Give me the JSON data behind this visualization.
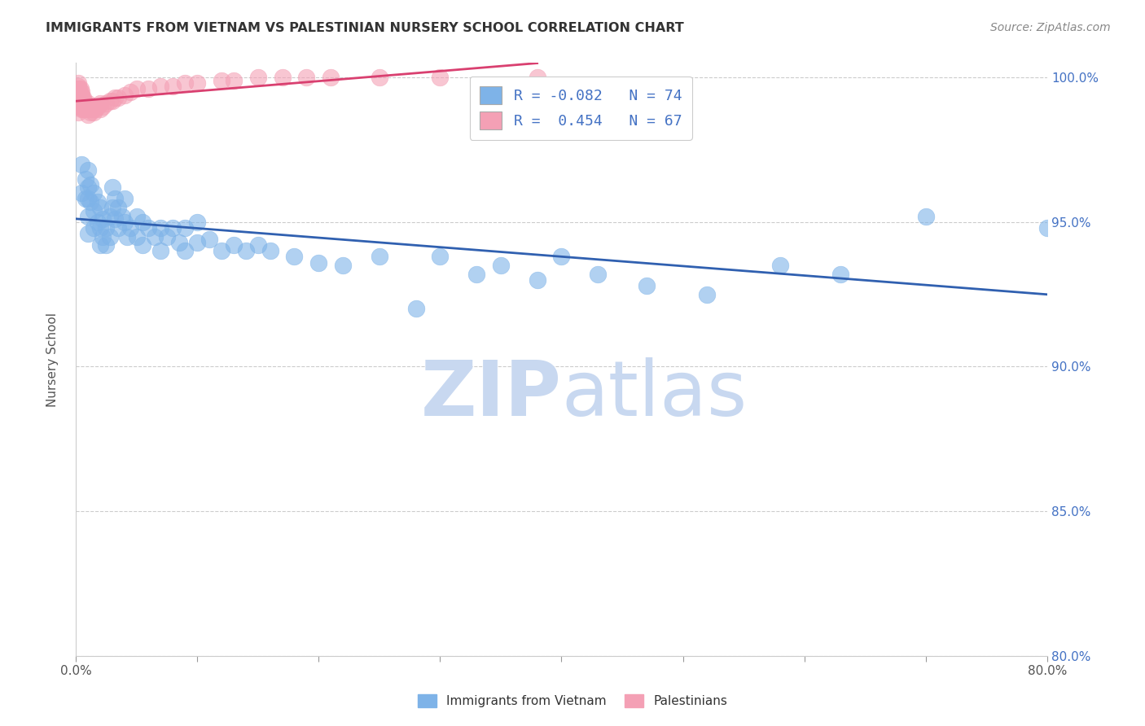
{
  "title": "IMMIGRANTS FROM VIETNAM VS PALESTINIAN NURSERY SCHOOL CORRELATION CHART",
  "source": "Source: ZipAtlas.com",
  "ylabel": "Nursery School",
  "xlim": [
    0.0,
    0.8
  ],
  "ylim": [
    0.8,
    1.005
  ],
  "xticks": [
    0.0,
    0.1,
    0.2,
    0.3,
    0.4,
    0.5,
    0.6,
    0.7,
    0.8
  ],
  "xticklabels": [
    "0.0%",
    "",
    "",
    "",
    "",
    "",
    "",
    "",
    "80.0%"
  ],
  "yticks": [
    0.8,
    0.85,
    0.9,
    0.95,
    1.0
  ],
  "yticklabels": [
    "80.0%",
    "85.0%",
    "90.0%",
    "95.0%",
    "100.0%"
  ],
  "blue_R": -0.082,
  "blue_N": 74,
  "pink_R": 0.454,
  "pink_N": 67,
  "blue_color": "#7EB3E8",
  "pink_color": "#F4A0B5",
  "blue_line_color": "#3060B0",
  "pink_line_color": "#D94070",
  "watermark_color": "#C8D8F0",
  "blue_x": [
    0.005,
    0.005,
    0.008,
    0.008,
    0.01,
    0.01,
    0.01,
    0.01,
    0.01,
    0.012,
    0.012,
    0.015,
    0.015,
    0.015,
    0.018,
    0.018,
    0.02,
    0.02,
    0.02,
    0.022,
    0.022,
    0.025,
    0.025,
    0.028,
    0.028,
    0.03,
    0.03,
    0.032,
    0.032,
    0.035,
    0.035,
    0.038,
    0.04,
    0.04,
    0.042,
    0.045,
    0.05,
    0.05,
    0.055,
    0.055,
    0.06,
    0.065,
    0.07,
    0.07,
    0.075,
    0.08,
    0.085,
    0.09,
    0.09,
    0.1,
    0.1,
    0.11,
    0.12,
    0.13,
    0.14,
    0.15,
    0.16,
    0.18,
    0.2,
    0.22,
    0.25,
    0.28,
    0.3,
    0.33,
    0.35,
    0.38,
    0.4,
    0.43,
    0.47,
    0.52,
    0.58,
    0.63,
    0.7,
    0.8
  ],
  "blue_y": [
    0.97,
    0.96,
    0.965,
    0.958,
    0.968,
    0.962,
    0.958,
    0.952,
    0.946,
    0.963,
    0.957,
    0.96,
    0.954,
    0.948,
    0.957,
    0.95,
    0.955,
    0.948,
    0.942,
    0.951,
    0.945,
    0.948,
    0.942,
    0.952,
    0.945,
    0.962,
    0.955,
    0.958,
    0.951,
    0.955,
    0.948,
    0.952,
    0.958,
    0.95,
    0.945,
    0.948,
    0.952,
    0.945,
    0.95,
    0.942,
    0.948,
    0.945,
    0.948,
    0.94,
    0.945,
    0.948,
    0.943,
    0.948,
    0.94,
    0.95,
    0.943,
    0.944,
    0.94,
    0.942,
    0.94,
    0.942,
    0.94,
    0.938,
    0.936,
    0.935,
    0.938,
    0.92,
    0.938,
    0.932,
    0.935,
    0.93,
    0.938,
    0.932,
    0.928,
    0.925,
    0.935,
    0.932,
    0.952,
    0.948
  ],
  "pink_x": [
    0.002,
    0.002,
    0.002,
    0.002,
    0.002,
    0.002,
    0.002,
    0.002,
    0.002,
    0.002,
    0.003,
    0.003,
    0.003,
    0.003,
    0.003,
    0.004,
    0.004,
    0.004,
    0.004,
    0.005,
    0.005,
    0.005,
    0.005,
    0.005,
    0.006,
    0.006,
    0.006,
    0.007,
    0.007,
    0.008,
    0.008,
    0.009,
    0.01,
    0.01,
    0.01,
    0.012,
    0.012,
    0.014,
    0.015,
    0.015,
    0.016,
    0.018,
    0.02,
    0.02,
    0.022,
    0.025,
    0.028,
    0.03,
    0.032,
    0.035,
    0.04,
    0.045,
    0.05,
    0.06,
    0.07,
    0.08,
    0.09,
    0.1,
    0.12,
    0.13,
    0.15,
    0.17,
    0.19,
    0.21,
    0.25,
    0.3,
    0.38
  ],
  "pink_y": [
    0.998,
    0.997,
    0.996,
    0.995,
    0.994,
    0.993,
    0.992,
    0.991,
    0.99,
    0.988,
    0.996,
    0.995,
    0.994,
    0.993,
    0.991,
    0.996,
    0.994,
    0.992,
    0.99,
    0.995,
    0.994,
    0.993,
    0.991,
    0.989,
    0.993,
    0.991,
    0.989,
    0.992,
    0.99,
    0.991,
    0.989,
    0.99,
    0.991,
    0.989,
    0.987,
    0.99,
    0.988,
    0.989,
    0.99,
    0.988,
    0.989,
    0.99,
    0.991,
    0.989,
    0.99,
    0.991,
    0.992,
    0.992,
    0.993,
    0.993,
    0.994,
    0.995,
    0.996,
    0.996,
    0.997,
    0.997,
    0.998,
    0.998,
    0.999,
    0.999,
    1.0,
    1.0,
    1.0,
    1.0,
    1.0,
    1.0,
    1.0
  ]
}
